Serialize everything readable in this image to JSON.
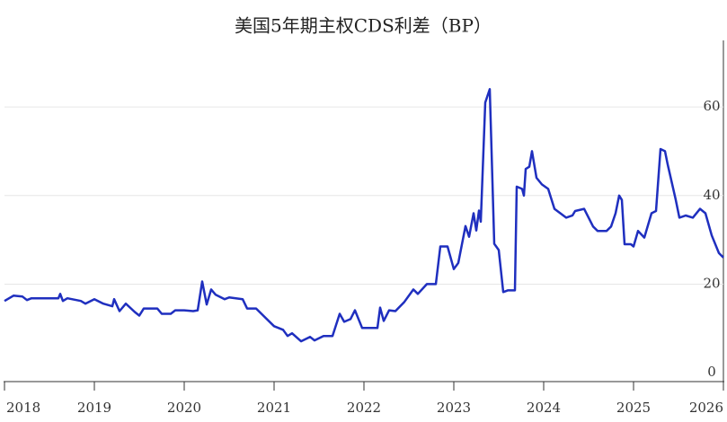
{
  "chart_data": {
    "type": "line",
    "title": "美国5年期主权CDS利差（BP）",
    "x": [
      2018.0,
      2018.1,
      2018.2,
      2018.25,
      2018.3,
      2018.6,
      2018.62,
      2018.65,
      2018.7,
      2018.85,
      2018.9,
      2019.0,
      2019.1,
      2019.2,
      2019.22,
      2019.28,
      2019.35,
      2019.45,
      2019.5,
      2019.55,
      2019.7,
      2019.75,
      2019.85,
      2019.9,
      2020.0,
      2020.1,
      2020.15,
      2020.2,
      2020.25,
      2020.3,
      2020.35,
      2020.45,
      2020.5,
      2020.65,
      2020.7,
      2020.8,
      2020.9,
      2021.0,
      2021.1,
      2021.15,
      2021.2,
      2021.3,
      2021.4,
      2021.45,
      2021.55,
      2021.65,
      2021.73,
      2021.78,
      2021.85,
      2021.9,
      2021.98,
      2022.15,
      2022.18,
      2022.22,
      2022.28,
      2022.35,
      2022.45,
      2022.55,
      2022.6,
      2022.7,
      2022.8,
      2022.85,
      2022.93,
      2023.0,
      2023.05,
      2023.13,
      2023.17,
      2023.22,
      2023.25,
      2023.28,
      2023.3,
      2023.35,
      2023.4,
      2023.45,
      2023.5,
      2023.55,
      2023.6,
      2023.68,
      2023.7,
      2023.76,
      2023.78,
      2023.8,
      2023.84,
      2023.87,
      2023.92,
      2023.98,
      2024.05,
      2024.12,
      2024.25,
      2024.32,
      2024.35,
      2024.45,
      2024.55,
      2024.6,
      2024.7,
      2024.75,
      2024.8,
      2024.84,
      2024.87,
      2024.9,
      2024.97,
      2025.0,
      2025.05,
      2025.12,
      2025.2,
      2025.25,
      2025.3,
      2025.35,
      2025.38,
      2025.47,
      2025.51,
      2025.58,
      2025.66,
      2025.74,
      2025.8,
      2025.87,
      2025.95,
      2026.0
    ],
    "series": [
      {
        "color": "#1f2fbf",
        "values": [
          16.2,
          17.4,
          17.2,
          16.4,
          16.8,
          16.8,
          17.8,
          16.2,
          16.8,
          16.2,
          15.6,
          16.6,
          15.6,
          15.0,
          16.6,
          13.9,
          15.6,
          13.7,
          12.9,
          14.5,
          14.5,
          13.3,
          13.3,
          14.1,
          14.1,
          13.9,
          14.1,
          20.6,
          15.4,
          18.8,
          17.6,
          16.6,
          17.0,
          16.6,
          14.5,
          14.5,
          12.5,
          10.5,
          9.7,
          8.3,
          8.9,
          7.1,
          8.1,
          7.3,
          8.3,
          8.3,
          13.3,
          11.5,
          12.1,
          14.1,
          10.1,
          10.1,
          14.7,
          11.7,
          14.1,
          13.9,
          16.0,
          18.8,
          17.8,
          20.0,
          20.0,
          28.5,
          28.5,
          23.4,
          24.8,
          33.1,
          30.7,
          36.0,
          32.1,
          36.6,
          34.1,
          61.0,
          64.0,
          29.1,
          27.7,
          18.2,
          18.6,
          18.6,
          42,
          41.5,
          40,
          46,
          46.5,
          50,
          44,
          42.5,
          41.5,
          37,
          35,
          35.5,
          36.5,
          37,
          33,
          32,
          32,
          33,
          36,
          40,
          39,
          29,
          29,
          28.5,
          32,
          30.5,
          36,
          36.5,
          50.5,
          50,
          47,
          39,
          35,
          35.5,
          35,
          37,
          36,
          31,
          27,
          26
        ]
      }
    ],
    "xlim": [
      2018,
      2026.02
    ],
    "xticks": [
      2018,
      2019,
      2020,
      2021,
      2022,
      2023,
      2024,
      2025,
      2026
    ],
    "ylim": [
      -2,
      74
    ],
    "yticks": [
      0,
      20,
      40,
      60
    ],
    "grid": true
  }
}
